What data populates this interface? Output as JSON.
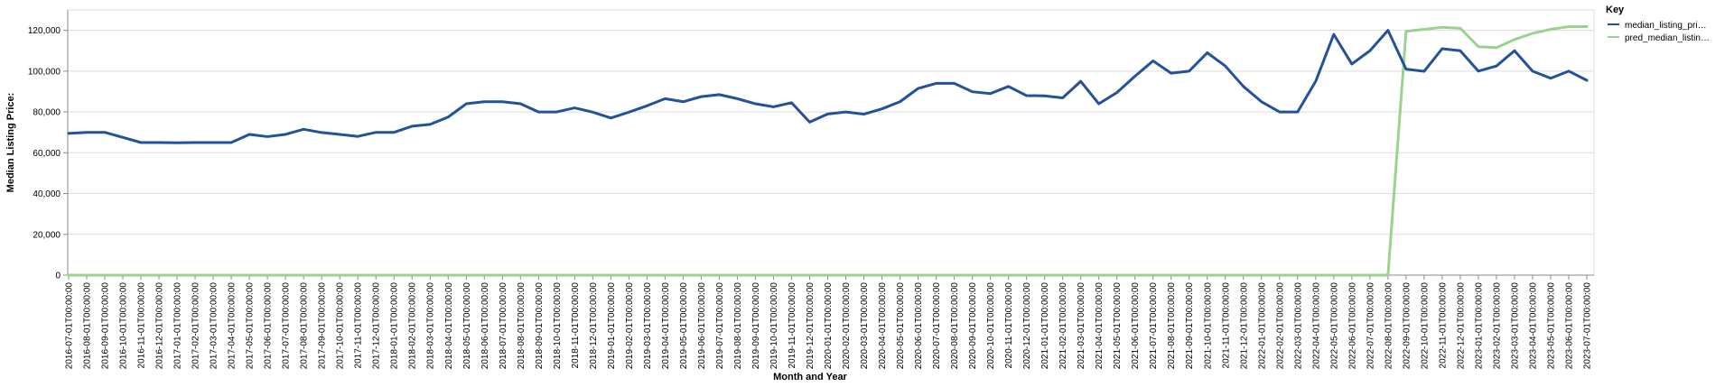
{
  "chart_data": {
    "type": "line",
    "xlabel": "Month and Year",
    "ylabel": "Median Listing Price:",
    "ylim": [
      0,
      130000
    ],
    "yticks": [
      0,
      20000,
      40000,
      60000,
      80000,
      100000,
      120000
    ],
    "ytick_labels": [
      "0",
      "20,000",
      "40,000",
      "60,000",
      "80,000",
      "100,000",
      "120,000"
    ],
    "grid": true,
    "legend": {
      "title": "Key",
      "position": "top-right",
      "entries": [
        "median_listing_pri…",
        "pred_median_listin…"
      ]
    },
    "x": [
      "2016-07-01T00:00:00",
      "2016-08-01T00:00:00",
      "2016-09-01T00:00:00",
      "2016-10-01T00:00:00",
      "2016-11-01T00:00:00",
      "2016-12-01T00:00:00",
      "2017-01-01T00:00:00",
      "2017-02-01T00:00:00",
      "2017-03-01T00:00:00",
      "2017-04-01T00:00:00",
      "2017-05-01T00:00:00",
      "2017-06-01T00:00:00",
      "2017-07-01T00:00:00",
      "2017-08-01T00:00:00",
      "2017-09-01T00:00:00",
      "2017-10-01T00:00:00",
      "2017-11-01T00:00:00",
      "2017-12-01T00:00:00",
      "2018-01-01T00:00:00",
      "2018-02-01T00:00:00",
      "2018-03-01T00:00:00",
      "2018-04-01T00:00:00",
      "2018-05-01T00:00:00",
      "2018-06-01T00:00:00",
      "2018-07-01T00:00:00",
      "2018-08-01T00:00:00",
      "2018-09-01T00:00:00",
      "2018-10-01T00:00:00",
      "2018-11-01T00:00:00",
      "2018-12-01T00:00:00",
      "2019-01-01T00:00:00",
      "2019-02-01T00:00:00",
      "2019-03-01T00:00:00",
      "2019-04-01T00:00:00",
      "2019-05-01T00:00:00",
      "2019-06-01T00:00:00",
      "2019-07-01T00:00:00",
      "2019-08-01T00:00:00",
      "2019-09-01T00:00:00",
      "2019-10-01T00:00:00",
      "2019-11-01T00:00:00",
      "2019-12-01T00:00:00",
      "2020-01-01T00:00:00",
      "2020-02-01T00:00:00",
      "2020-03-01T00:00:00",
      "2020-04-01T00:00:00",
      "2020-05-01T00:00:00",
      "2020-06-01T00:00:00",
      "2020-07-01T00:00:00",
      "2020-08-01T00:00:00",
      "2020-09-01T00:00:00",
      "2020-10-01T00:00:00",
      "2020-11-01T00:00:00",
      "2020-12-01T00:00:00",
      "2021-01-01T00:00:00",
      "2021-02-01T00:00:00",
      "2021-03-01T00:00:00",
      "2021-04-01T00:00:00",
      "2021-05-01T00:00:00",
      "2021-06-01T00:00:00",
      "2021-07-01T00:00:00",
      "2021-08-01T00:00:00",
      "2021-09-01T00:00:00",
      "2021-10-01T00:00:00",
      "2021-11-01T00:00:00",
      "2021-12-01T00:00:00",
      "2022-01-01T00:00:00",
      "2022-02-01T00:00:00",
      "2022-03-01T00:00:00",
      "2022-04-01T00:00:00",
      "2022-05-01T00:00:00",
      "2022-06-01T00:00:00",
      "2022-07-01T00:00:00",
      "2022-08-01T00:00:00",
      "2022-09-01T00:00:00",
      "2022-10-01T00:00:00",
      "2022-11-01T00:00:00",
      "2022-12-01T00:00:00",
      "2023-01-01T00:00:00",
      "2023-02-01T00:00:00",
      "2023-03-01T00:00:00",
      "2023-04-01T00:00:00",
      "2023-05-01T00:00:00",
      "2023-06-01T00:00:00",
      "2023-07-01T00:00:00"
    ],
    "series": [
      {
        "name": "median_listing_pri…",
        "color": "#23529b",
        "values": [
          69500,
          70000,
          70000,
          67500,
          65000,
          65000,
          64900,
          65000,
          65000,
          65000,
          69000,
          67900,
          69000,
          71500,
          69900,
          69000,
          68000,
          70000,
          70000,
          73000,
          73900,
          77500,
          84000,
          85000,
          85000,
          84000,
          80000,
          80000,
          82000,
          79900,
          77000,
          79900,
          83000,
          86500,
          85000,
          87500,
          88500,
          86500,
          84000,
          82500,
          84500,
          75000,
          79000,
          80000,
          78900,
          81500,
          85000,
          91500,
          94000,
          94000,
          89900,
          89000,
          92500,
          88000,
          87900,
          86900,
          95000,
          84000,
          89500,
          97500,
          105000,
          99000,
          100000,
          109000,
          102500,
          92500,
          85000,
          80000,
          80000,
          95000,
          118000,
          103500,
          110000,
          120000,
          101000,
          99900,
          111000,
          110000,
          100000,
          102500,
          110000,
          100000,
          96500,
          100000,
          95500
        ]
      },
      {
        "name": "pred_median_listin…",
        "color": "#9ad38e",
        "values": [
          0,
          0,
          0,
          0,
          0,
          0,
          0,
          0,
          0,
          0,
          0,
          0,
          0,
          0,
          0,
          0,
          0,
          0,
          0,
          0,
          0,
          0,
          0,
          0,
          0,
          0,
          0,
          0,
          0,
          0,
          0,
          0,
          0,
          0,
          0,
          0,
          0,
          0,
          0,
          0,
          0,
          0,
          0,
          0,
          0,
          0,
          0,
          0,
          0,
          0,
          0,
          0,
          0,
          0,
          0,
          0,
          0,
          0,
          0,
          0,
          0,
          0,
          0,
          0,
          0,
          0,
          0,
          0,
          0,
          0,
          0,
          0,
          0,
          0,
          119500,
          120500,
          121500,
          121000,
          112000,
          111500,
          115500,
          118500,
          120500,
          121800,
          121800
        ]
      }
    ]
  }
}
